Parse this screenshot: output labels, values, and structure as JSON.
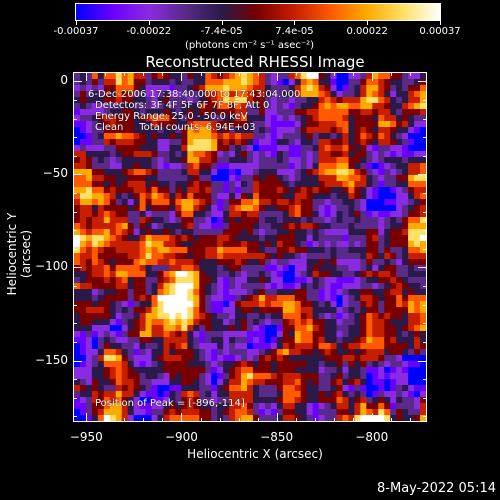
{
  "colorbar": {
    "tick_labels": [
      "-0.00037",
      "-0.00022",
      "-7.4e-05",
      "7.4e-05",
      "0.00022",
      "0.00037"
    ],
    "units": "(photons cm⁻² s⁻¹ asec⁻²)",
    "colors": [
      "#0000ff",
      "#6b00ff",
      "#8a2be2",
      "#5a2a8a",
      "#2a1a4a",
      "#7a0000",
      "#c81e00",
      "#ff5a00",
      "#ffaa00",
      "#ffe066",
      "#ffffff"
    ]
  },
  "plot": {
    "title": "Reconstructed RHESSI Image",
    "annotations": {
      "time_range": "6-Dec-2006 17:38:40.000 to 17:43:04.000",
      "detectors": "Detectors: 3F 4F 5F 6F 7F 8F, Att 0",
      "energy": "Energy Range: 25.0 - 50.0 keV",
      "clean": "Clean     Total counts: 6.94E+03",
      "peak": "Position of Peak = [-896,-114]"
    }
  },
  "chart_data": {
    "type": "heatmap",
    "title": "Reconstructed RHESSI Image",
    "xlabel": "Heliocentric X (arcsec)",
    "ylabel": "Heliocentric Y (arcsec)",
    "xlim": [
      -957,
      -771
    ],
    "ylim": [
      -183,
      5
    ],
    "x_ticks": [
      -950,
      -900,
      -850,
      -800
    ],
    "y_ticks": [
      0,
      -50,
      -100,
      -150
    ],
    "x_tick_labels": [
      "−950",
      "−900",
      "−850",
      "−800"
    ],
    "y_tick_labels": [
      "0",
      "−50",
      "−100",
      "−150"
    ],
    "value_range": [
      -0.00037,
      0.00037
    ],
    "peak_position": [
      -896,
      -114
    ]
  },
  "footer": {
    "date": "8-May-2022 05:14"
  }
}
